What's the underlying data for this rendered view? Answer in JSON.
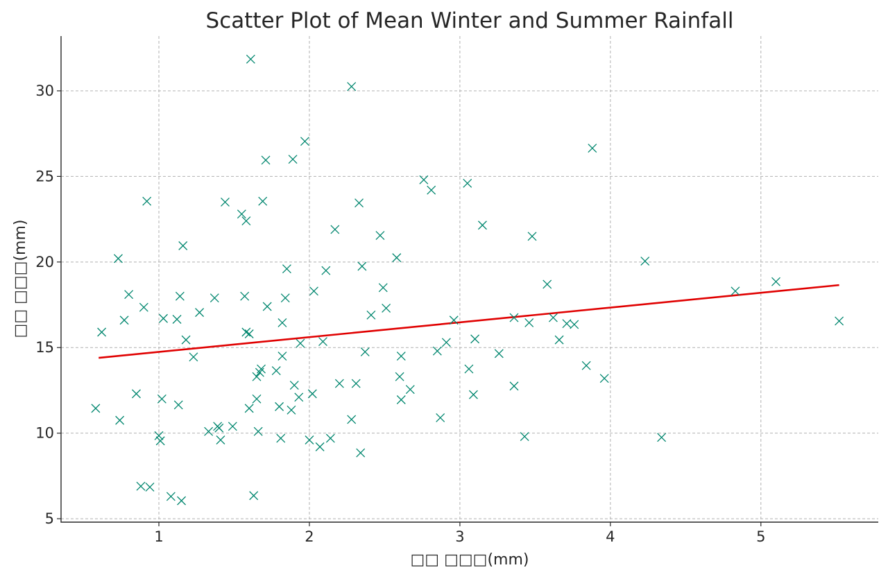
{
  "chart_data": {
    "type": "scatter",
    "title": "Scatter Plot of Mean Winter and Summer Rainfall",
    "xlabel": "□□ □□□(mm)",
    "ylabel": "□□ □□□(mm)",
    "xlim": [
      0.35,
      5.78
    ],
    "ylim": [
      4.8,
      33.2
    ],
    "xticks": [
      1,
      2,
      3,
      4,
      5
    ],
    "yticks": [
      5,
      10,
      15,
      20,
      25,
      30
    ],
    "grid": true,
    "marker": "x",
    "point_color": "#00866e",
    "trend_color": "#e00000",
    "trend": {
      "x": [
        0.6,
        5.52
      ],
      "y": [
        14.4,
        18.65
      ]
    },
    "points": [
      [
        0.58,
        11.45
      ],
      [
        0.62,
        15.9
      ],
      [
        0.73,
        20.2
      ],
      [
        0.74,
        10.75
      ],
      [
        0.77,
        16.6
      ],
      [
        0.8,
        18.1
      ],
      [
        0.85,
        12.3
      ],
      [
        0.88,
        6.9
      ],
      [
        0.9,
        17.35
      ],
      [
        0.92,
        23.55
      ],
      [
        0.94,
        6.85
      ],
      [
        1.0,
        9.85
      ],
      [
        1.01,
        9.55
      ],
      [
        1.02,
        12.0
      ],
      [
        1.03,
        16.7
      ],
      [
        1.08,
        6.3
      ],
      [
        1.12,
        16.65
      ],
      [
        1.13,
        11.65
      ],
      [
        1.14,
        18.0
      ],
      [
        1.15,
        6.05
      ],
      [
        1.16,
        20.95
      ],
      [
        1.18,
        15.45
      ],
      [
        1.23,
        14.45
      ],
      [
        1.27,
        17.05
      ],
      [
        1.33,
        10.1
      ],
      [
        1.37,
        17.9
      ],
      [
        1.39,
        10.4
      ],
      [
        1.4,
        10.3
      ],
      [
        1.41,
        9.6
      ],
      [
        1.44,
        23.5
      ],
      [
        1.49,
        10.4
      ],
      [
        1.55,
        22.8
      ],
      [
        1.57,
        18.0
      ],
      [
        1.58,
        22.4
      ],
      [
        1.58,
        15.9
      ],
      [
        1.6,
        15.8
      ],
      [
        1.6,
        11.45
      ],
      [
        1.61,
        31.85
      ],
      [
        1.63,
        6.35
      ],
      [
        1.65,
        12.0
      ],
      [
        1.65,
        13.3
      ],
      [
        1.66,
        10.1
      ],
      [
        1.67,
        13.55
      ],
      [
        1.68,
        13.75
      ],
      [
        1.69,
        23.55
      ],
      [
        1.71,
        25.95
      ],
      [
        1.72,
        17.4
      ],
      [
        1.78,
        13.65
      ],
      [
        1.8,
        11.55
      ],
      [
        1.81,
        9.7
      ],
      [
        1.82,
        16.45
      ],
      [
        1.82,
        14.5
      ],
      [
        1.84,
        17.9
      ],
      [
        1.85,
        19.6
      ],
      [
        1.88,
        11.35
      ],
      [
        1.89,
        26.0
      ],
      [
        1.9,
        12.8
      ],
      [
        1.93,
        12.1
      ],
      [
        1.94,
        15.25
      ],
      [
        1.97,
        27.05
      ],
      [
        2.0,
        9.6
      ],
      [
        2.02,
        12.3
      ],
      [
        2.03,
        18.3
      ],
      [
        2.07,
        9.2
      ],
      [
        2.09,
        15.35
      ],
      [
        2.11,
        19.5
      ],
      [
        2.14,
        9.7
      ],
      [
        2.17,
        21.9
      ],
      [
        2.2,
        12.9
      ],
      [
        2.28,
        30.25
      ],
      [
        2.28,
        10.8
      ],
      [
        2.31,
        12.9
      ],
      [
        2.33,
        23.45
      ],
      [
        2.34,
        8.85
      ],
      [
        2.35,
        19.75
      ],
      [
        2.37,
        14.75
      ],
      [
        2.41,
        16.9
      ],
      [
        2.47,
        21.55
      ],
      [
        2.49,
        18.5
      ],
      [
        2.51,
        17.3
      ],
      [
        2.58,
        20.25
      ],
      [
        2.6,
        13.3
      ],
      [
        2.61,
        14.5
      ],
      [
        2.61,
        11.95
      ],
      [
        2.67,
        12.55
      ],
      [
        2.76,
        24.8
      ],
      [
        2.81,
        24.2
      ],
      [
        2.85,
        14.8
      ],
      [
        2.87,
        10.9
      ],
      [
        2.91,
        15.3
      ],
      [
        2.96,
        16.6
      ],
      [
        3.05,
        24.6
      ],
      [
        3.06,
        13.75
      ],
      [
        3.09,
        12.25
      ],
      [
        3.1,
        15.5
      ],
      [
        3.15,
        22.15
      ],
      [
        3.26,
        14.65
      ],
      [
        3.36,
        12.75
      ],
      [
        3.36,
        16.75
      ],
      [
        3.43,
        9.8
      ],
      [
        3.46,
        16.45
      ],
      [
        3.48,
        21.5
      ],
      [
        3.58,
        18.7
      ],
      [
        3.62,
        16.75
      ],
      [
        3.66,
        15.45
      ],
      [
        3.71,
        16.4
      ],
      [
        3.76,
        16.35
      ],
      [
        3.84,
        13.95
      ],
      [
        3.88,
        26.65
      ],
      [
        3.96,
        13.2
      ],
      [
        4.23,
        20.05
      ],
      [
        4.34,
        9.75
      ],
      [
        4.83,
        18.3
      ],
      [
        5.1,
        18.85
      ],
      [
        5.52,
        16.55
      ]
    ]
  }
}
